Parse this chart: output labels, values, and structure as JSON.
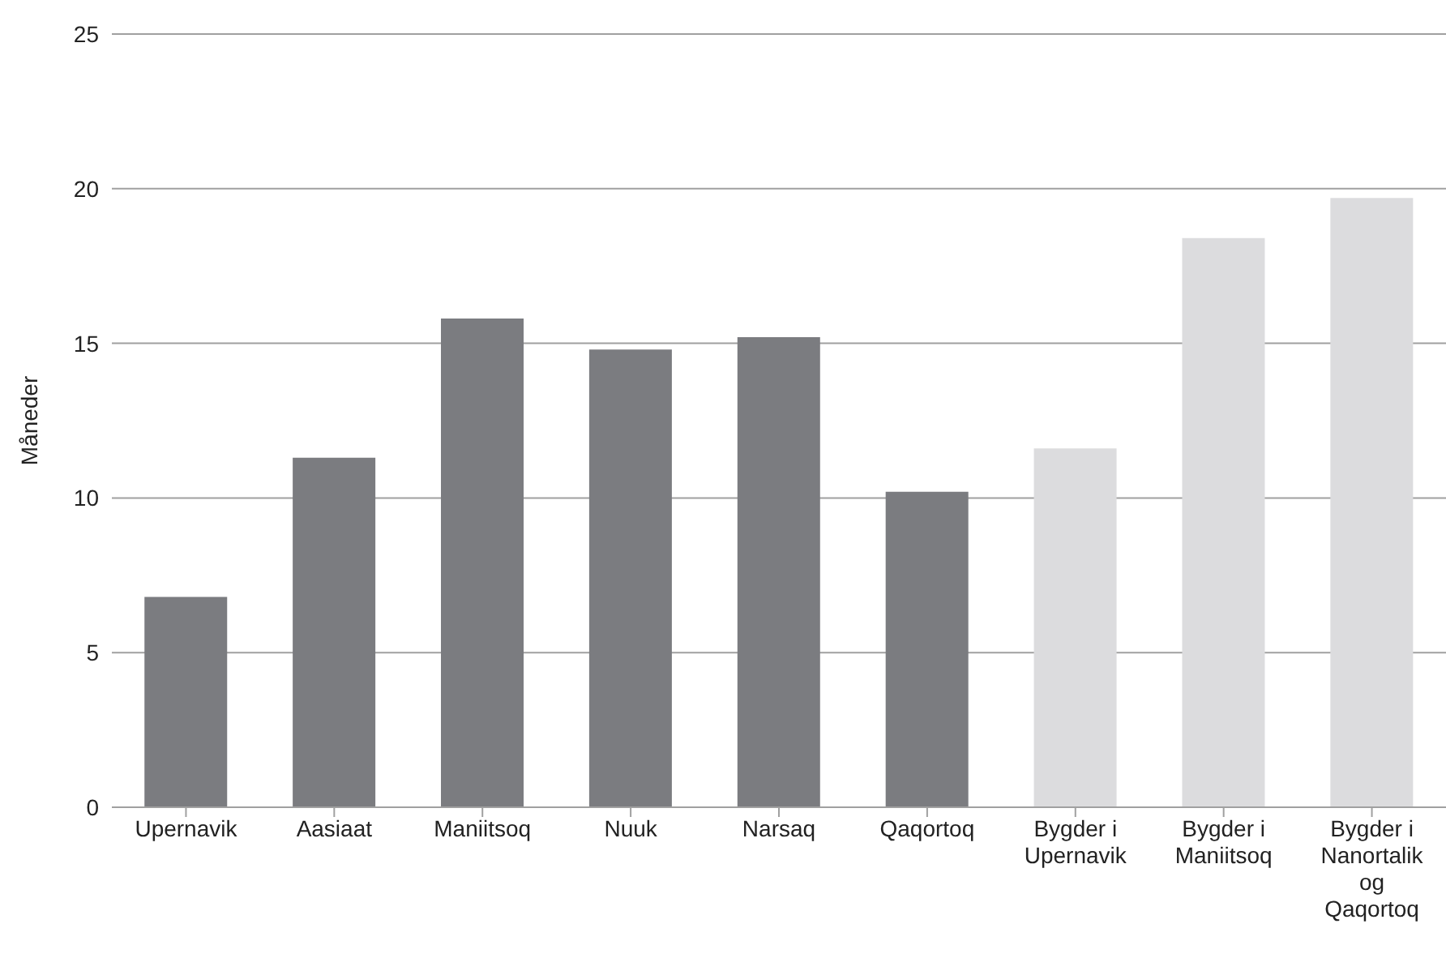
{
  "chart_data": {
    "type": "bar",
    "ylabel": "Måneder",
    "categories": [
      "Upernavik",
      "Aasiaat",
      "Maniitsoq",
      "Nuuk",
      "Narsaq",
      "Qaqortoq",
      "Bygder i Upernavik",
      "Bygder i Maniitsoq",
      "Bygder i Nanortalik og Qaqortoq"
    ],
    "values": [
      6.8,
      11.3,
      15.8,
      14.8,
      15.2,
      10.2,
      11.6,
      18.4,
      19.7
    ],
    "colors": [
      "#7b7c80",
      "#7b7c80",
      "#7b7c80",
      "#7b7c80",
      "#7b7c80",
      "#7b7c80",
      "#dcdcde",
      "#dcdcde",
      "#dcdcde"
    ],
    "ylim": [
      0,
      25
    ],
    "yticks": [
      0,
      5,
      10,
      15,
      20,
      25
    ],
    "grid": "y"
  }
}
